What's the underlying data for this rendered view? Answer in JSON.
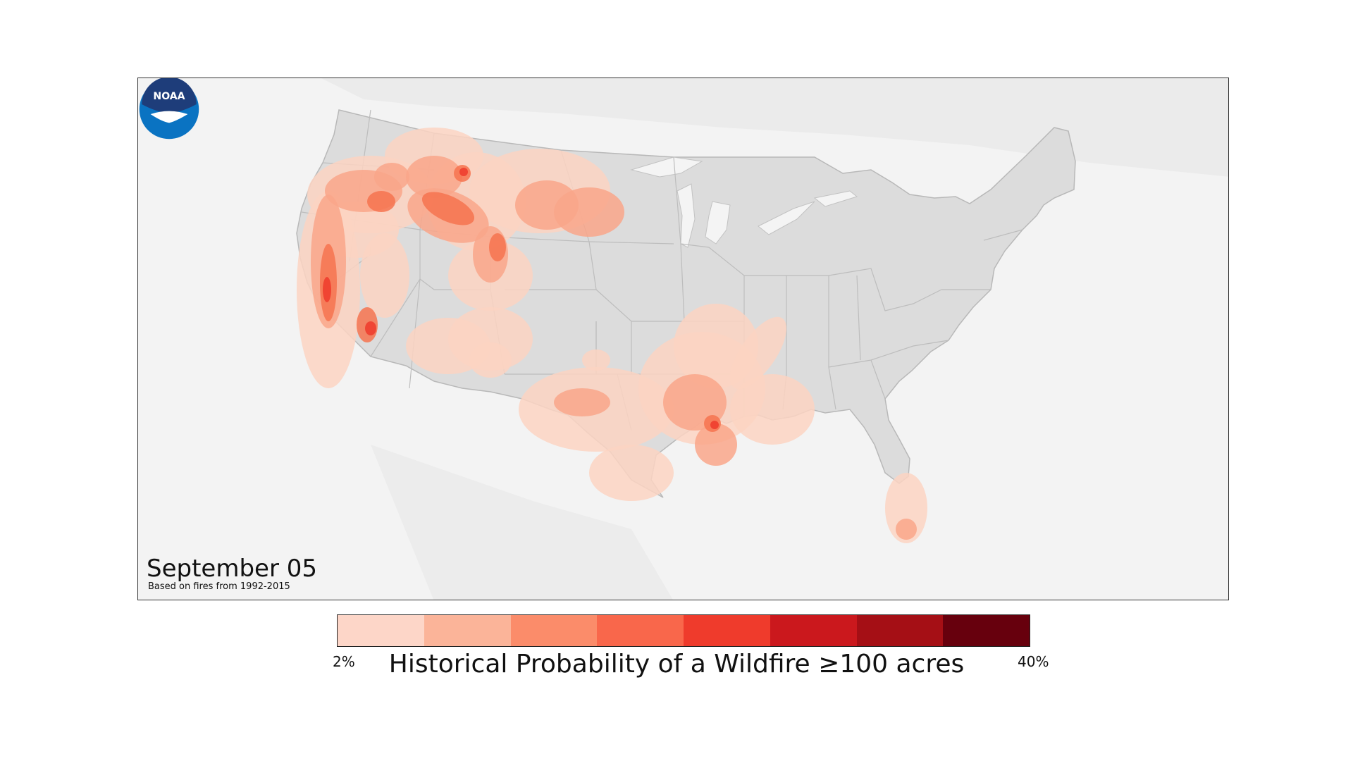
{
  "map": {
    "date": "September 05",
    "source_note": "Based on fires from 1992-2015",
    "logo_text": "NOAA",
    "logo_name": "noaa-logo"
  },
  "legend": {
    "min_label": "2%",
    "max_label": "40%",
    "title": "Historical Probability of a Wildfire ≥100 acres",
    "colors": [
      "#fdd6c8",
      "#fbb499",
      "#fb8c6a",
      "#f9674b",
      "#ef3b2c",
      "#cb181d",
      "#a50f15",
      "#67000d"
    ]
  }
}
